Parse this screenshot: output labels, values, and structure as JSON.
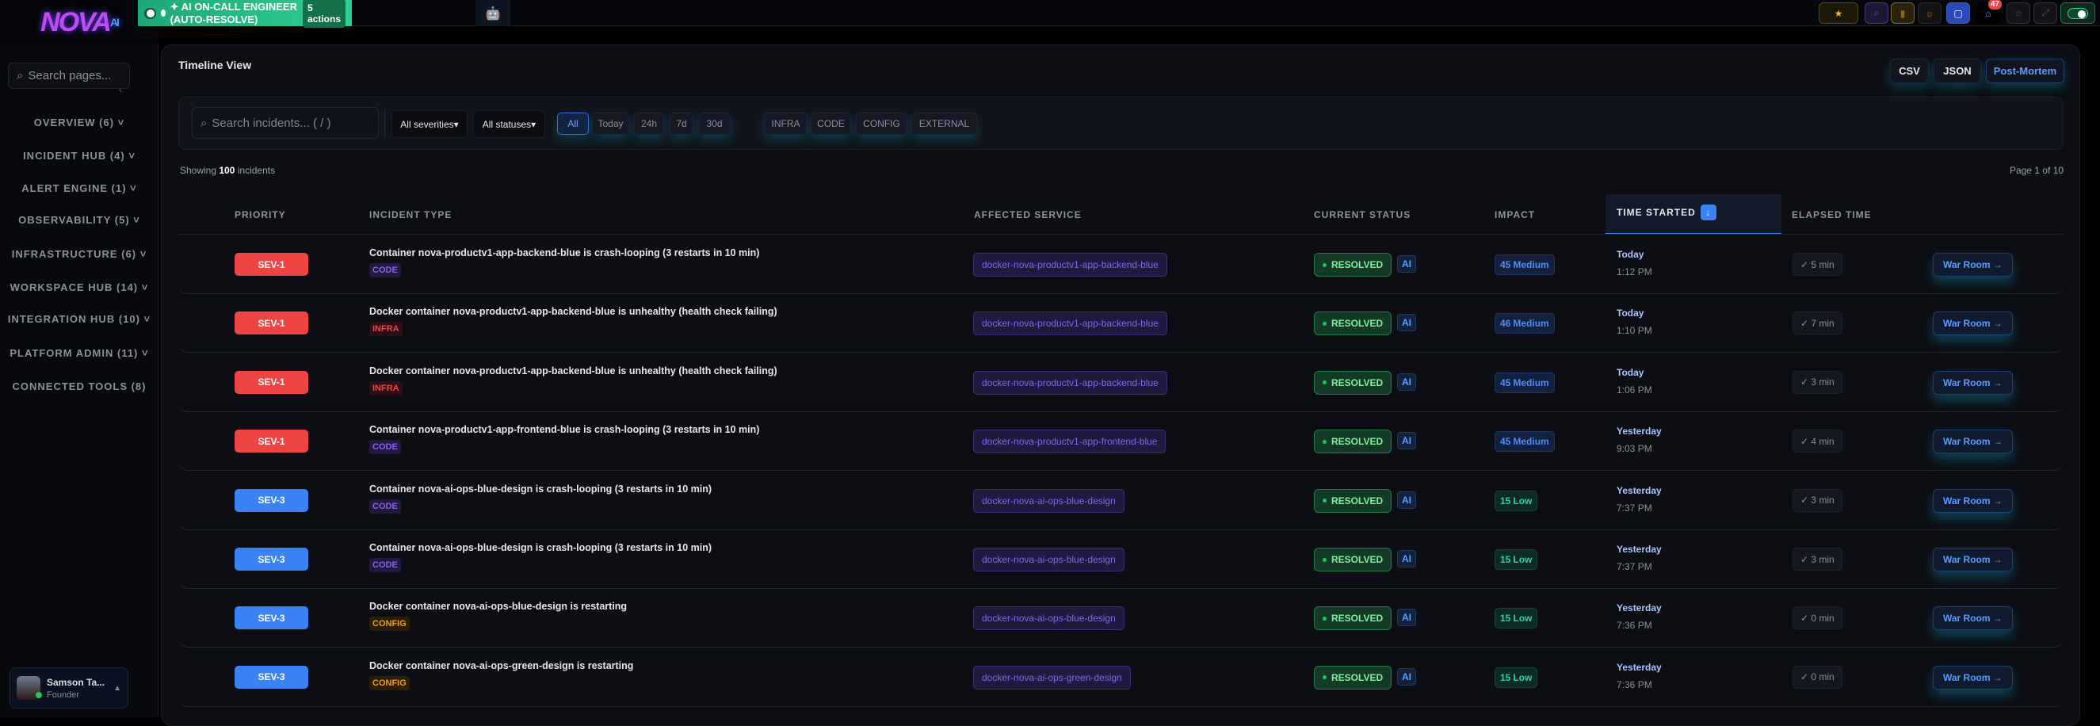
{
  "app": {
    "logo": "NOVA",
    "logo_suffix": "AI"
  },
  "banner": {
    "label": "✦ AI ON-CALL ENGINEER (AUTO-RESOLVE)",
    "actions": "5 actions",
    "color": "#2ccf94"
  },
  "topbar": {
    "notification_count": "47",
    "icons": [
      "star-icon",
      "search-icon",
      "search-icon",
      "bookmark-icon",
      "sun-icon",
      "chat-icon",
      "notification-icon",
      "star-outline-icon",
      "expand-icon",
      "theme-toggle"
    ]
  },
  "sidebar": {
    "search_placeholder": "Search pages...",
    "items": [
      {
        "label": "OVERVIEW (6) ˅"
      },
      {
        "label": "INCIDENT HUB (4) ˅"
      },
      {
        "label": "ALERT ENGINE (1) ˅"
      },
      {
        "label": "OBSERVABILITY (5) ˅"
      },
      {
        "label": "INFRASTRUCTURE (6) ˅"
      },
      {
        "label": "WORKSPACE HUB (14) ˅"
      },
      {
        "label": "INTEGRATION HUB (10) ˅"
      },
      {
        "label": "PLATFORM ADMIN (11) ˅"
      },
      {
        "label": "CONNECTED TOOLS (8)"
      }
    ],
    "user": {
      "name": "Samson Ta...",
      "role": "Founder"
    }
  },
  "main": {
    "title": "Timeline View",
    "export": {
      "csv": "CSV",
      "json": "JSON",
      "postmortem": "Post-Mortem"
    },
    "filters": {
      "search_placeholder": "Search incidents... ( / )",
      "severity": "All severities",
      "status": "All statuses",
      "time_ranges": [
        "All",
        "Today",
        "24h",
        "7d",
        "30d"
      ],
      "active_time_range": "All",
      "categories": [
        "INFRA",
        "CODE",
        "CONFIG",
        "EXTERNAL"
      ]
    },
    "showing_prefix": "Showing",
    "showing_count": "100",
    "showing_suffix": "incidents",
    "pagination": "Page 1 of 10",
    "columns": [
      "PRIORITY",
      "INCIDENT TYPE",
      "AFFECTED SERVICE",
      "CURRENT STATUS",
      "IMPACT",
      "TIME STARTED",
      "ELAPSED TIME"
    ],
    "sorted_column": "TIME STARTED",
    "sort_direction": "descending",
    "colors": {
      "sev1": "#ef4444",
      "sev3": "#3b82f6",
      "CODE": "#8b5cf6",
      "INFRA": "#ef4444",
      "CONFIG": "#f59e0b"
    },
    "rows": [
      {
        "priority": "SEV-1",
        "incident": "Container nova-productv1-app-backend-blue is crash-looping (3 restarts in 10 min)",
        "category": "CODE",
        "service": "docker-nova-productv1-app-backend-blue",
        "status": "RESOLVED",
        "ai": "AI",
        "impact_score": "45",
        "impact": "Medium",
        "day": "Today",
        "time": "1:12 PM",
        "elapsed": "✓ 5 min",
        "action": "War Room →"
      },
      {
        "priority": "SEV-1",
        "incident": "Docker container nova-productv1-app-backend-blue is unhealthy (health check failing)",
        "category": "INFRA",
        "service": "docker-nova-productv1-app-backend-blue",
        "status": "RESOLVED",
        "ai": "AI",
        "impact_score": "46",
        "impact": "Medium",
        "day": "Today",
        "time": "1:10 PM",
        "elapsed": "✓ 7 min",
        "action": "War Room →"
      },
      {
        "priority": "SEV-1",
        "incident": "Docker container nova-productv1-app-backend-blue is unhealthy (health check failing)",
        "category": "INFRA",
        "service": "docker-nova-productv1-app-backend-blue",
        "status": "RESOLVED",
        "ai": "AI",
        "impact_score": "45",
        "impact": "Medium",
        "day": "Today",
        "time": "1:06 PM",
        "elapsed": "✓ 3 min",
        "action": "War Room →"
      },
      {
        "priority": "SEV-1",
        "incident": "Container nova-productv1-app-frontend-blue is crash-looping (3 restarts in 10 min)",
        "category": "CODE",
        "service": "docker-nova-productv1-app-frontend-blue",
        "status": "RESOLVED",
        "ai": "AI",
        "impact_score": "45",
        "impact": "Medium",
        "day": "Yesterday",
        "time": "9:03 PM",
        "elapsed": "✓ 4 min",
        "action": "War Room →"
      },
      {
        "priority": "SEV-3",
        "incident": "Container nova-ai-ops-blue-design is crash-looping (3 restarts in 10 min)",
        "category": "CODE",
        "service": "docker-nova-ai-ops-blue-design",
        "status": "RESOLVED",
        "ai": "AI",
        "impact_score": "15",
        "impact": "Low",
        "day": "Yesterday",
        "time": "7:37 PM",
        "elapsed": "✓ 3 min",
        "action": "War Room →"
      },
      {
        "priority": "SEV-3",
        "incident": "Container nova-ai-ops-blue-design is crash-looping (3 restarts in 10 min)",
        "category": "CODE",
        "service": "docker-nova-ai-ops-blue-design",
        "status": "RESOLVED",
        "ai": "AI",
        "impact_score": "15",
        "impact": "Low",
        "day": "Yesterday",
        "time": "7:37 PM",
        "elapsed": "✓ 3 min",
        "action": "War Room →"
      },
      {
        "priority": "SEV-3",
        "incident": "Docker container nova-ai-ops-blue-design is restarting",
        "category": "CONFIG",
        "service": "docker-nova-ai-ops-blue-design",
        "status": "RESOLVED",
        "ai": "AI",
        "impact_score": "15",
        "impact": "Low",
        "day": "Yesterday",
        "time": "7:36 PM",
        "elapsed": "✓ 0 min",
        "action": "War Room →"
      },
      {
        "priority": "SEV-3",
        "incident": "Docker container nova-ai-ops-green-design is restarting",
        "category": "CONFIG",
        "service": "docker-nova-ai-ops-green-design",
        "status": "RESOLVED",
        "ai": "AI",
        "impact_score": "15",
        "impact": "Low",
        "day": "Yesterday",
        "time": "7:36 PM",
        "elapsed": "✓ 0 min",
        "action": "War Room →"
      }
    ]
  }
}
